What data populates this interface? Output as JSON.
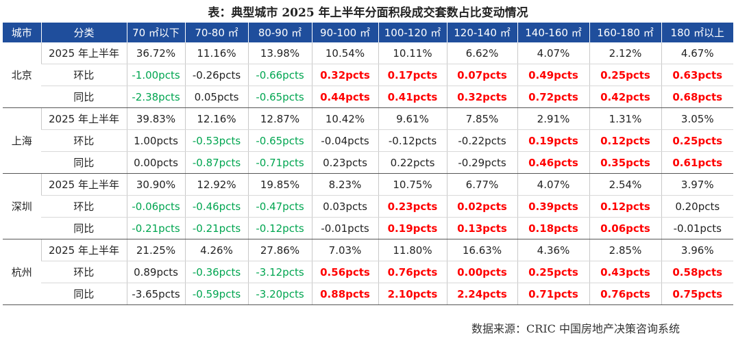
{
  "title": "表：典型城市 2025 年上半年分面积段成交套数占比变动情况",
  "table": {
    "header": [
      "城市",
      "分类",
      "70 ㎡以下",
      "70-80 ㎡",
      "80-90 ㎡",
      "90-100 ㎡",
      "100-120 ㎡",
      "120-140 ㎡",
      "140-160 ㎡",
      "160-180 ㎡",
      "180 ㎡以上"
    ],
    "groups": [
      {
        "city": "北京",
        "rows": [
          {
            "label": "2025 年上半年",
            "cells": [
              "36.72%",
              "11.16%",
              "13.98%",
              "10.54%",
              "10.11%",
              "6.62%",
              "4.07%",
              "2.12%",
              "4.67%"
            ],
            "colors": [
              "#222222",
              "#222222",
              "#222222",
              "#222222",
              "#222222",
              "#222222",
              "#222222",
              "#222222",
              "#222222"
            ]
          },
          {
            "label": "环比",
            "cells": [
              "-1.00pcts",
              "-0.26pcts",
              "-0.66pcts",
              "0.32pcts",
              "0.17pcts",
              "0.07pcts",
              "0.49pcts",
              "0.25pcts",
              "0.63pcts"
            ],
            "colors": [
              "#00a550",
              "#222222",
              "#00a550",
              "#ff0000",
              "#ff0000",
              "#ff0000",
              "#ff0000",
              "#ff0000",
              "#ff0000"
            ]
          },
          {
            "label": "同比",
            "cells": [
              "-2.38pcts",
              "0.05pcts",
              "-0.65pcts",
              "0.44pcts",
              "0.41pcts",
              "0.32pcts",
              "0.72pcts",
              "0.42pcts",
              "0.68pcts"
            ],
            "colors": [
              "#00a550",
              "#222222",
              "#00a550",
              "#ff0000",
              "#ff0000",
              "#ff0000",
              "#ff0000",
              "#ff0000",
              "#ff0000"
            ]
          }
        ]
      },
      {
        "city": "上海",
        "rows": [
          {
            "label": "2025 年上半年",
            "cells": [
              "39.83%",
              "12.16%",
              "12.87%",
              "10.42%",
              "9.61%",
              "7.85%",
              "2.91%",
              "1.31%",
              "3.05%"
            ],
            "colors": [
              "#222222",
              "#222222",
              "#222222",
              "#222222",
              "#222222",
              "#222222",
              "#222222",
              "#222222",
              "#222222"
            ]
          },
          {
            "label": "环比",
            "cells": [
              "1.00pcts",
              "-0.53pcts",
              "-0.65pcts",
              "-0.04pcts",
              "-0.12pcts",
              "-0.22pcts",
              "0.19pcts",
              "0.12pcts",
              "0.25pcts"
            ],
            "colors": [
              "#222222",
              "#00a550",
              "#00a550",
              "#222222",
              "#222222",
              "#222222",
              "#ff0000",
              "#ff0000",
              "#ff0000"
            ]
          },
          {
            "label": "同比",
            "cells": [
              "0.00pcts",
              "-0.87pcts",
              "-0.71pcts",
              "0.23pcts",
              "0.22pcts",
              "-0.29pcts",
              "0.46pcts",
              "0.35pcts",
              "0.61pcts"
            ],
            "colors": [
              "#222222",
              "#00a550",
              "#00a550",
              "#222222",
              "#222222",
              "#222222",
              "#ff0000",
              "#ff0000",
              "#ff0000"
            ]
          }
        ]
      },
      {
        "city": "深圳",
        "rows": [
          {
            "label": "2025 年上半年",
            "cells": [
              "30.90%",
              "12.92%",
              "19.85%",
              "8.23%",
              "10.75%",
              "6.77%",
              "4.07%",
              "2.54%",
              "3.97%"
            ],
            "colors": [
              "#222222",
              "#222222",
              "#222222",
              "#222222",
              "#222222",
              "#222222",
              "#222222",
              "#222222",
              "#222222"
            ]
          },
          {
            "label": "环比",
            "cells": [
              "-0.06pcts",
              "-0.46pcts",
              "-0.47pcts",
              "0.03pcts",
              "0.23pcts",
              "0.02pcts",
              "0.39pcts",
              "0.12pcts",
              "0.20pcts"
            ],
            "colors": [
              "#00a550",
              "#00a550",
              "#00a550",
              "#222222",
              "#ff0000",
              "#ff0000",
              "#ff0000",
              "#ff0000",
              "#222222"
            ]
          },
          {
            "label": "同比",
            "cells": [
              "-0.21pcts",
              "-0.21pcts",
              "-0.12pcts",
              "-0.01pcts",
              "0.19pcts",
              "0.13pcts",
              "0.18pcts",
              "0.06pcts",
              "-0.01pcts"
            ],
            "colors": [
              "#00a550",
              "#00a550",
              "#00a550",
              "#222222",
              "#ff0000",
              "#ff0000",
              "#ff0000",
              "#ff0000",
              "#222222"
            ]
          }
        ]
      },
      {
        "city": "杭州",
        "rows": [
          {
            "label": "2025 年上半年",
            "cells": [
              "21.25%",
              "4.26%",
              "27.86%",
              "7.03%",
              "11.80%",
              "16.63%",
              "4.36%",
              "2.85%",
              "3.96%"
            ],
            "colors": [
              "#222222",
              "#222222",
              "#222222",
              "#222222",
              "#222222",
              "#222222",
              "#222222",
              "#222222",
              "#222222"
            ]
          },
          {
            "label": "环比",
            "cells": [
              "0.89pcts",
              "-0.36pcts",
              "-3.12pcts",
              "0.56pcts",
              "0.76pcts",
              "0.00pcts",
              "0.25pcts",
              "0.43pcts",
              "0.58pcts"
            ],
            "colors": [
              "#222222",
              "#00a550",
              "#00a550",
              "#ff0000",
              "#ff0000",
              "#ff0000",
              "#ff0000",
              "#ff0000",
              "#ff0000"
            ]
          },
          {
            "label": "同比",
            "cells": [
              "-3.65pcts",
              "-0.59pcts",
              "-3.20pcts",
              "0.88pcts",
              "2.10pcts",
              "2.24pcts",
              "0.71pcts",
              "0.76pcts",
              "0.75pcts"
            ],
            "colors": [
              "#222222",
              "#00a550",
              "#00a550",
              "#ff0000",
              "#ff0000",
              "#ff0000",
              "#ff0000",
              "#ff0000",
              "#ff0000"
            ]
          }
        ]
      }
    ]
  },
  "source": "数据来源：CRIC 中国房地产决策咨询系统"
}
